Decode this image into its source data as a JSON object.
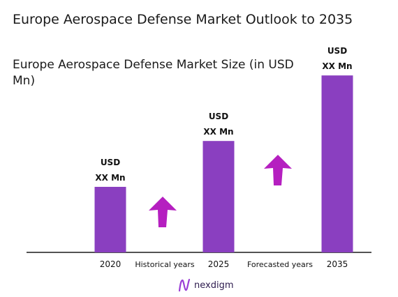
{
  "title": "Europe Aerospace Defense Market Outlook to 2035",
  "subtitle": "Europe Aerospace Defense Market Size (in USD Mn)",
  "brand": {
    "name": "nexdigm"
  },
  "colors": {
    "bar": "#8a3fc0",
    "arrow": "#b51fc0",
    "axis": "#1a1a1a"
  },
  "period_labels": [
    "Historical years",
    "Forecasted years"
  ],
  "chart_data": {
    "type": "bar",
    "categories": [
      "2020",
      "2025",
      "2035"
    ],
    "values": [
      1.0,
      1.7,
      2.7
    ],
    "value_note": "relative bar heights only; the chart prints no numeric values",
    "data_labels": [
      [
        "USD",
        "XX Mn"
      ],
      [
        "USD",
        "XX Mn"
      ],
      [
        "USD",
        "XX Mn"
      ]
    ],
    "title": "Europe Aerospace Defense Market Size (in USD Mn)",
    "xlabel": "",
    "ylabel": "",
    "grid": false,
    "legend": "none",
    "trend_arrows": [
      "up",
      "up"
    ]
  }
}
